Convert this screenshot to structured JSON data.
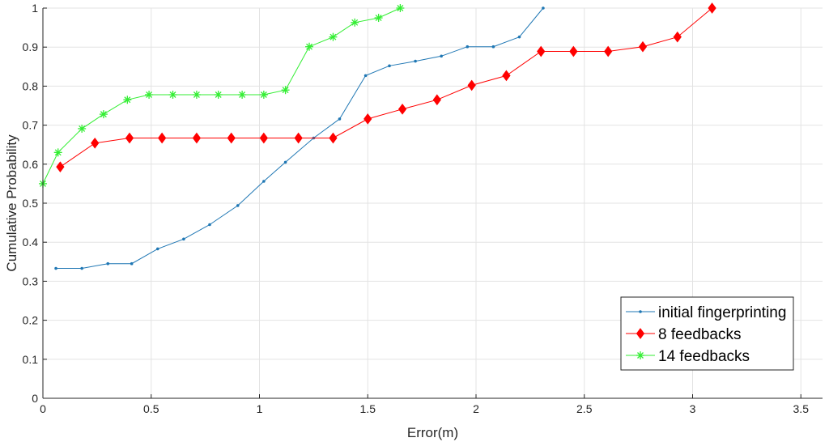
{
  "chart_data": {
    "type": "line",
    "title": "",
    "xlabel": "Error(m)",
    "ylabel": "Cumulative Probability",
    "xlim": [
      0,
      3.6
    ],
    "ylim": [
      0,
      1
    ],
    "x_ticks": [
      0,
      0.5,
      1,
      1.5,
      2,
      2.5,
      3,
      3.5
    ],
    "x_tick_labels": [
      "0",
      "0.5",
      "1",
      "1.5",
      "2",
      "2.5",
      "3",
      "3.5"
    ],
    "y_ticks": [
      0,
      0.1,
      0.2,
      0.3,
      0.4,
      0.5,
      0.6,
      0.7,
      0.8,
      0.9,
      1
    ],
    "y_tick_labels": [
      "0",
      "0.1",
      "0.2",
      "0.3",
      "0.4",
      "0.5",
      "0.6",
      "0.7",
      "0.8",
      "0.9",
      "1"
    ],
    "grid": true,
    "legend_position": "bottom-right",
    "series": [
      {
        "name": "initial fingerprinting",
        "color": "#1f77b4",
        "marker": "dot",
        "x": [
          0.06,
          0.18,
          0.3,
          0.41,
          0.53,
          0.65,
          0.77,
          0.9,
          1.02,
          1.12,
          1.25,
          1.37,
          1.49,
          1.6,
          1.72,
          1.84,
          1.96,
          2.08,
          2.2,
          2.31
        ],
        "y": [
          0.333,
          0.333,
          0.345,
          0.345,
          0.383,
          0.408,
          0.445,
          0.494,
          0.556,
          0.605,
          0.667,
          0.716,
          0.827,
          0.852,
          0.864,
          0.877,
          0.901,
          0.901,
          0.926,
          1.0
        ]
      },
      {
        "name": "8 feedbacks",
        "color": "#ff0000",
        "marker": "diamond",
        "x": [
          0.08,
          0.24,
          0.4,
          0.55,
          0.71,
          0.87,
          1.02,
          1.18,
          1.34,
          1.5,
          1.66,
          1.82,
          1.98,
          2.14,
          2.3,
          2.45,
          2.61,
          2.77,
          2.93,
          3.09
        ],
        "y": [
          0.593,
          0.654,
          0.667,
          0.667,
          0.667,
          0.667,
          0.667,
          0.667,
          0.667,
          0.716,
          0.741,
          0.765,
          0.802,
          0.827,
          0.889,
          0.889,
          0.889,
          0.901,
          0.926,
          1.0
        ]
      },
      {
        "name": "14 feedbacks",
        "color": "#33ee33",
        "marker": "asterisk",
        "x": [
          0.0,
          0.07,
          0.18,
          0.28,
          0.39,
          0.49,
          0.6,
          0.71,
          0.81,
          0.92,
          1.02,
          1.12,
          1.23,
          1.34,
          1.44,
          1.55,
          1.65
        ],
        "y": [
          0.55,
          0.63,
          0.691,
          0.728,
          0.765,
          0.778,
          0.778,
          0.778,
          0.778,
          0.778,
          0.778,
          0.79,
          0.901,
          0.926,
          0.963,
          0.975,
          1.0
        ]
      }
    ]
  }
}
